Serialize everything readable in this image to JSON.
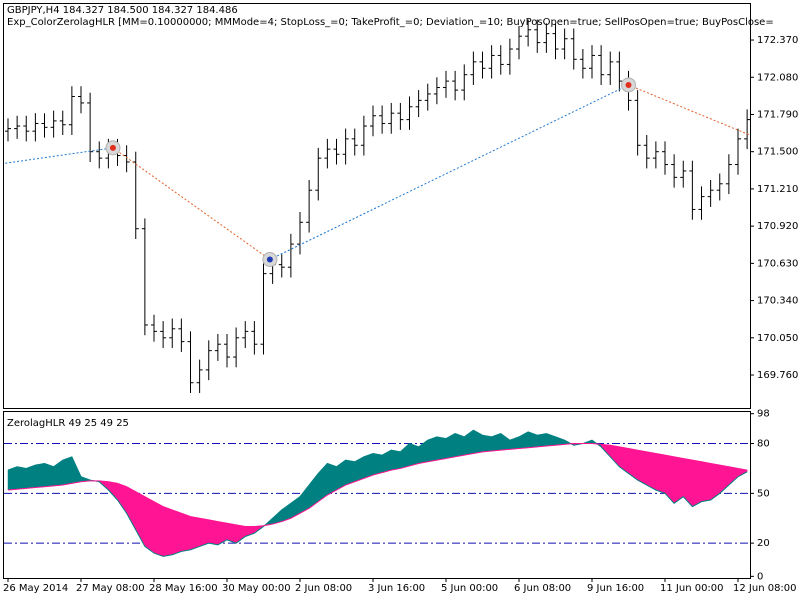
{
  "chart_data": [
    {
      "type": "ohlc",
      "title": "GBPJPY,H4  184.327 184.500 184.327 184.486",
      "subtitle": "Exp_ColorZerolagHLR [MM=0.10000000; MMMode=4; StopLoss_=0; TakeProfit_=0; Deviation_=10; BuyPosOpen=true; SellPosOpen=true; BuyPosClose=",
      "color": "#000000",
      "open": [
        171.66,
        171.68,
        171.7,
        171.66,
        171.72,
        171.69,
        171.74,
        171.71,
        171.93,
        171.88,
        171.5,
        171.45,
        171.52,
        171.47,
        171.42,
        170.9,
        170.15,
        170.1,
        170.05,
        170.12,
        170.02,
        169.7,
        169.8,
        169.95,
        170.0,
        169.9,
        170.05,
        170.1,
        170.0,
        170.55,
        170.62,
        170.6,
        170.78,
        170.95,
        171.2,
        171.45,
        171.52,
        171.48,
        171.6,
        171.55,
        171.7,
        171.78,
        171.72,
        171.8,
        171.75,
        171.85,
        171.9,
        171.95,
        172.0,
        172.05,
        171.98,
        172.1,
        172.2,
        172.15,
        172.25,
        172.18,
        172.3,
        172.4,
        172.45,
        172.35,
        172.42,
        172.3,
        172.38,
        172.22,
        172.15,
        172.25,
        172.1,
        172.2,
        172.05,
        171.9,
        171.55,
        171.45,
        171.5,
        171.4,
        171.3,
        171.35,
        171.05,
        171.15,
        171.2,
        171.25,
        171.4,
        171.6
      ],
      "high": [
        171.76,
        171.78,
        171.78,
        171.8,
        171.8,
        171.82,
        171.82,
        172.01,
        172.01,
        171.96,
        171.58,
        171.6,
        171.6,
        171.55,
        171.5,
        170.98,
        170.23,
        170.18,
        170.2,
        170.2,
        170.1,
        169.88,
        170.03,
        170.08,
        170.08,
        170.13,
        170.18,
        170.18,
        170.63,
        170.7,
        170.7,
        170.86,
        171.03,
        171.28,
        171.53,
        171.6,
        171.6,
        171.68,
        171.68,
        171.78,
        171.86,
        171.86,
        171.88,
        171.88,
        171.93,
        171.98,
        172.03,
        172.08,
        172.13,
        172.13,
        172.18,
        172.28,
        172.28,
        172.33,
        172.33,
        172.38,
        172.48,
        172.53,
        172.53,
        172.5,
        172.5,
        172.46,
        172.46,
        172.3,
        172.33,
        172.33,
        172.28,
        172.28,
        172.13,
        171.98,
        171.63,
        171.58,
        171.58,
        171.48,
        171.43,
        171.43,
        171.23,
        171.28,
        171.33,
        171.48,
        171.68,
        171.83
      ],
      "low": [
        171.58,
        171.6,
        171.58,
        171.58,
        171.61,
        171.61,
        171.63,
        171.63,
        171.8,
        171.42,
        171.37,
        171.37,
        171.39,
        171.34,
        170.82,
        170.07,
        170.02,
        169.97,
        169.97,
        169.94,
        169.62,
        169.62,
        169.72,
        169.87,
        169.82,
        169.82,
        169.97,
        169.92,
        169.92,
        170.47,
        170.52,
        170.52,
        170.7,
        170.87,
        171.12,
        171.37,
        171.4,
        171.4,
        171.47,
        171.47,
        171.62,
        171.64,
        171.64,
        171.67,
        171.67,
        171.77,
        171.82,
        171.87,
        171.92,
        171.9,
        171.9,
        172.02,
        172.07,
        172.07,
        172.1,
        172.1,
        172.22,
        172.32,
        172.27,
        172.27,
        172.22,
        172.22,
        172.14,
        172.07,
        172.07,
        172.02,
        172.02,
        171.97,
        171.82,
        171.47,
        171.37,
        171.37,
        171.32,
        171.22,
        171.22,
        170.97,
        170.97,
        171.07,
        171.12,
        171.17,
        171.32,
        171.52
      ],
      "close": [
        171.68,
        171.7,
        171.66,
        171.72,
        171.69,
        171.74,
        171.71,
        171.93,
        171.88,
        171.5,
        171.45,
        171.52,
        171.47,
        171.42,
        170.9,
        170.15,
        170.1,
        170.05,
        170.12,
        170.02,
        169.7,
        169.8,
        169.95,
        170.0,
        169.9,
        170.05,
        170.1,
        170.0,
        170.55,
        170.62,
        170.6,
        170.78,
        170.95,
        171.2,
        171.45,
        171.52,
        171.48,
        171.6,
        171.55,
        171.7,
        171.78,
        171.72,
        171.8,
        171.75,
        171.85,
        171.9,
        171.95,
        172.0,
        172.05,
        171.98,
        172.1,
        172.2,
        172.15,
        172.25,
        172.18,
        172.3,
        172.4,
        172.45,
        172.35,
        172.42,
        172.3,
        172.38,
        172.22,
        172.15,
        172.25,
        172.1,
        172.2,
        172.05,
        171.9,
        171.55,
        171.45,
        171.5,
        171.4,
        171.3,
        171.35,
        171.05,
        171.15,
        171.2,
        171.25,
        171.4,
        171.6,
        171.75
      ],
      "deal_lines": {
        "x": [
          -0.3,
          11.5,
          28.7,
          68,
          81.3
        ],
        "y": [
          171.41,
          171.53,
          170.66,
          172.02,
          171.63
        ],
        "colors": [
          "#1e78d0",
          "#e0602a",
          "#1e78d0",
          "#e0602a"
        ]
      },
      "markers": {
        "x": [
          11.5,
          28.7,
          68
        ],
        "y": [
          171.53,
          170.66,
          172.02
        ],
        "colors": [
          "#e0301e",
          "#1e3cb4",
          "#e0301e"
        ]
      },
      "ylim": [
        169.503,
        172.643
      ],
      "yticks": [
        {
          "value": 172.37,
          "label": "172.370"
        },
        {
          "value": 172.08,
          "label": "172.080"
        },
        {
          "value": 171.79,
          "label": "171.790"
        },
        {
          "value": 171.5,
          "label": "171.500"
        },
        {
          "value": 171.21,
          "label": "171.210"
        },
        {
          "value": 170.92,
          "label": "170.920"
        },
        {
          "value": 170.63,
          "label": "170.630"
        },
        {
          "value": 170.34,
          "label": "170.340"
        },
        {
          "value": 170.05,
          "label": "170.050"
        },
        {
          "value": 169.76,
          "label": "169.760"
        }
      ]
    },
    {
      "type": "cloud",
      "title": "ZerolagHLR 49 25 49 25",
      "categories": [
        "26 May 2014",
        null,
        null,
        null,
        null,
        null,
        null,
        null,
        "27 May 08:00",
        null,
        null,
        null,
        null,
        null,
        null,
        null,
        "28 May 16:00",
        null,
        null,
        null,
        null,
        null,
        null,
        null,
        "30 May 00:00",
        null,
        null,
        null,
        null,
        null,
        null,
        null,
        "2 Jun 08:00",
        null,
        null,
        null,
        null,
        null,
        null,
        null,
        "3 Jun 16:00",
        null,
        null,
        null,
        null,
        null,
        null,
        null,
        "5 Jun 00:00",
        null,
        null,
        null,
        null,
        null,
        null,
        null,
        "6 Jun 08:00",
        null,
        null,
        null,
        null,
        null,
        null,
        null,
        "9 Jun 16:00",
        null,
        null,
        null,
        null,
        null,
        null,
        null,
        "11 Jun 00:00",
        null,
        null,
        null,
        null,
        null,
        null,
        null,
        "12 Jun 08:00",
        null
      ],
      "series": [
        {
          "color": "#008080",
          "values": [
            64,
            66,
            65,
            67,
            68,
            66,
            70,
            72,
            60,
            58,
            57,
            52,
            46,
            38,
            28,
            18,
            14,
            12,
            13,
            15,
            16,
            18,
            20,
            19,
            22,
            20,
            24,
            26,
            30,
            35,
            40,
            44,
            48,
            55,
            62,
            68,
            66,
            70,
            69,
            72,
            74,
            73,
            76,
            75,
            80,
            78,
            82,
            84,
            83,
            86,
            84,
            88,
            85,
            84,
            86,
            82,
            84,
            87,
            85,
            86,
            84,
            82,
            79,
            80,
            82,
            78,
            72,
            66,
            62,
            58,
            55,
            52,
            50,
            44,
            48,
            42,
            45,
            46,
            50,
            55,
            60,
            63
          ]
        },
        {
          "color": "#ff1493",
          "values": [
            52,
            52.5,
            53,
            53.5,
            54,
            54.5,
            55,
            56,
            57,
            57.5,
            57.5,
            57,
            56,
            54,
            51,
            48,
            45,
            42,
            40,
            38,
            36,
            35,
            34,
            33,
            32,
            31,
            30,
            30,
            30.5,
            31.5,
            33,
            35,
            38,
            41,
            45,
            49,
            52,
            55,
            57,
            59,
            61,
            62.5,
            64,
            65,
            66.5,
            68,
            69,
            70,
            71,
            72,
            73,
            74,
            75,
            75.5,
            76,
            76.5,
            77,
            77.5,
            78,
            78.5,
            79,
            79.5,
            80,
            80,
            80,
            79.5,
            79,
            78,
            77,
            76,
            75,
            74,
            73,
            72,
            71,
            70,
            69,
            68,
            67,
            66,
            65,
            64
          ]
        }
      ],
      "levels": [
        80,
        50,
        20
      ],
      "level_color": "#1010b0",
      "ylim": [
        -1,
        99
      ],
      "yticks": [
        98,
        80,
        50,
        20,
        0
      ]
    }
  ]
}
